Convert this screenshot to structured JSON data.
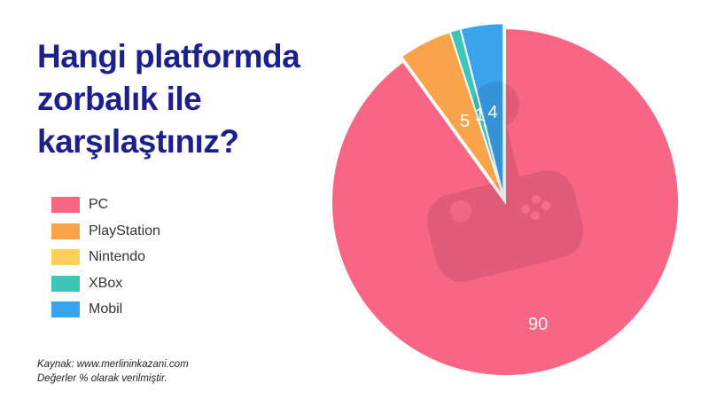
{
  "title": "Hangi platformda zorbalık ile karşılaştınız?",
  "footnote": {
    "source": "Kaynak: www.merlininkazani.com",
    "note": "Değerler % olarak verilmiştir."
  },
  "chart_data": {
    "type": "pie",
    "title": "Hangi platformda zorbalık ile karşılaştınız?",
    "legend_position": "left",
    "slices": [
      {
        "label": "PC",
        "value": 90,
        "color": "#f86585",
        "data_label": "90",
        "label_color": "#f3f3f3"
      },
      {
        "label": "PlayStation",
        "value": 5,
        "color": "#f9a44a",
        "data_label": "5",
        "label_color": "#ffffff"
      },
      {
        "label": "Nintendo",
        "value": 0,
        "color": "#fdd05a",
        "data_label": "",
        "label_color": "#ffffff"
      },
      {
        "label": "XBox",
        "value": 1,
        "color": "#3dc5b8",
        "data_label": "1",
        "label_color": "#ffffff"
      },
      {
        "label": "Mobil",
        "value": 4,
        "color": "#3aa3ee",
        "data_label": "4",
        "label_color": "#ffffff"
      }
    ],
    "background_icon": "gamepad-joystick-icon"
  }
}
